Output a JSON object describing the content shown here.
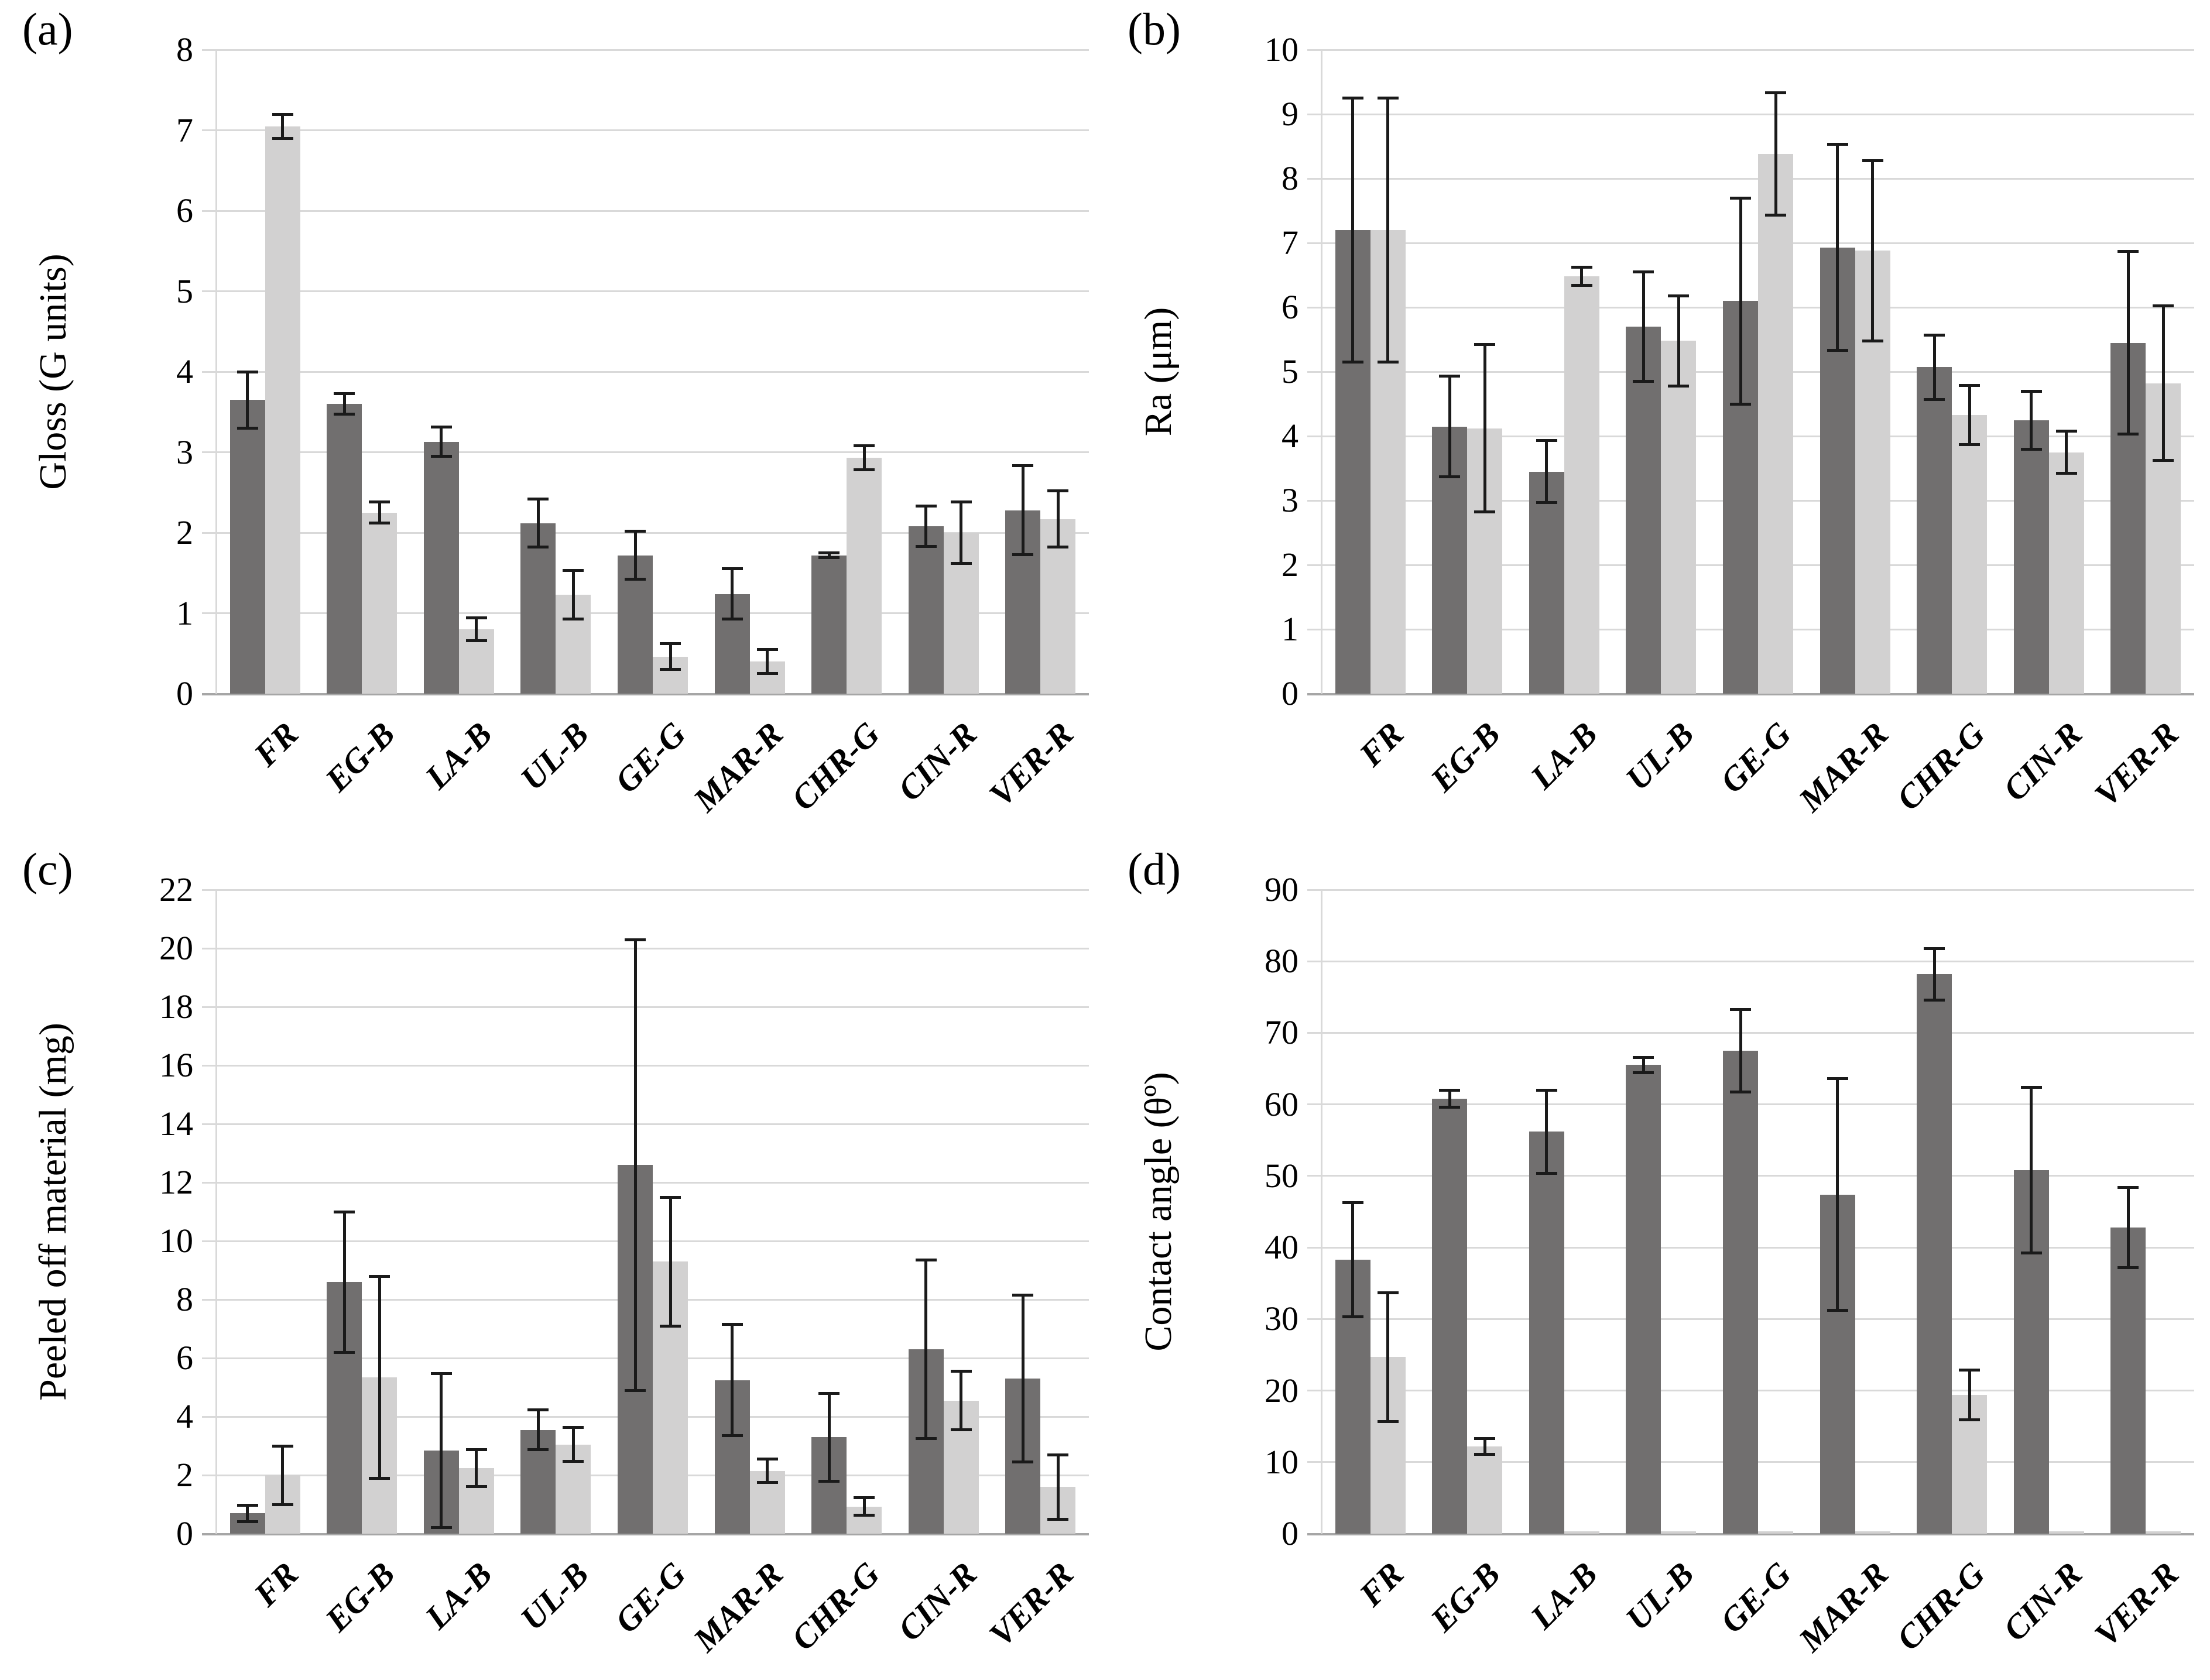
{
  "figure": {
    "background_color": "#ffffff",
    "gridline_color": "#d9d9d9",
    "axis_line_color": "#a6a6a6",
    "error_bar_color": "#1a1a1a",
    "series_colors": {
      "dark": "#716f6f",
      "light": "#d2d1d1"
    }
  },
  "chart_data": [
    {
      "id": "a",
      "panel_label": "(a)",
      "type": "bar",
      "title": "",
      "xlabel": "",
      "ylabel": "Gloss (G units)",
      "ylim": [
        0,
        8
      ],
      "ytick_step": 1,
      "grid": true,
      "legend_position": "none",
      "categories": [
        "FR",
        "EG-B",
        "LA-B",
        "UL-B",
        "GE-G",
        "MAR-R",
        "CHR-G",
        "CIN-R",
        "VER-R"
      ],
      "series": [
        {
          "name": "dark",
          "color": "#716f6f",
          "values": [
            3.65,
            3.6,
            3.13,
            2.12,
            1.72,
            1.24,
            1.72,
            2.08,
            2.28
          ],
          "errors": [
            0.35,
            0.13,
            0.18,
            0.3,
            0.3,
            0.31,
            0.03,
            0.25,
            0.55
          ]
        },
        {
          "name": "light",
          "color": "#d2d1d1",
          "values": [
            7.05,
            2.25,
            0.8,
            1.23,
            0.46,
            0.4,
            2.93,
            2.0,
            2.17
          ],
          "errors": [
            0.15,
            0.13,
            0.14,
            0.3,
            0.16,
            0.15,
            0.15,
            0.38,
            0.35
          ]
        }
      ]
    },
    {
      "id": "b",
      "panel_label": "(b)",
      "type": "bar",
      "title": "",
      "xlabel": "",
      "ylabel": "Ra (μm)",
      "ylim": [
        0,
        10
      ],
      "ytick_step": 1,
      "grid": true,
      "legend_position": "none",
      "categories": [
        "FR",
        "EG-B",
        "LA-B",
        "UL-B",
        "GE-G",
        "MAR-R",
        "CHR-G",
        "CIN-R",
        "VER-R"
      ],
      "series": [
        {
          "name": "dark",
          "color": "#716f6f",
          "values": [
            7.2,
            4.15,
            3.45,
            5.7,
            6.1,
            6.93,
            5.07,
            4.25,
            5.45
          ],
          "errors": [
            2.05,
            0.78,
            0.48,
            0.85,
            1.6,
            1.6,
            0.5,
            0.45,
            1.42
          ]
        },
        {
          "name": "light",
          "color": "#d2d1d1",
          "values": [
            7.2,
            4.12,
            6.48,
            5.48,
            8.38,
            6.88,
            4.33,
            3.75,
            4.82
          ],
          "errors": [
            2.05,
            1.3,
            0.14,
            0.7,
            0.95,
            1.4,
            0.46,
            0.33,
            1.2
          ]
        }
      ]
    },
    {
      "id": "c",
      "panel_label": "(c)",
      "type": "bar",
      "title": "",
      "xlabel": "",
      "ylabel": "Peeled off material (mg)",
      "ylim": [
        0,
        22
      ],
      "ytick_step": 2,
      "grid": true,
      "legend_position": "none",
      "categories": [
        "FR",
        "EG-B",
        "LA-B",
        "UL-B",
        "GE-G",
        "MAR-R",
        "CHR-G",
        "CIN-R",
        "VER-R"
      ],
      "series": [
        {
          "name": "dark",
          "color": "#716f6f",
          "values": [
            0.7,
            8.6,
            2.85,
            3.55,
            12.6,
            5.25,
            3.3,
            6.3,
            5.3
          ],
          "errors": [
            0.28,
            2.4,
            2.63,
            0.68,
            7.7,
            1.9,
            1.5,
            3.05,
            2.85
          ]
        },
        {
          "name": "light",
          "color": "#d2d1d1",
          "values": [
            2.0,
            5.35,
            2.25,
            3.05,
            9.3,
            2.15,
            0.93,
            4.55,
            1.6
          ],
          "errors": [
            1.0,
            3.45,
            0.63,
            0.58,
            2.2,
            0.4,
            0.3,
            1.0,
            1.1
          ]
        }
      ]
    },
    {
      "id": "d",
      "panel_label": "(d)",
      "type": "bar",
      "title": "",
      "xlabel": "",
      "ylabel": "Contact angle (θº)",
      "ylim": [
        0,
        90
      ],
      "ytick_step": 10,
      "grid": true,
      "legend_position": "none",
      "categories": [
        "FR",
        "EG-B",
        "LA-B",
        "UL-B",
        "GE-G",
        "MAR-R",
        "CHR-G",
        "CIN-R",
        "VER-R"
      ],
      "series": [
        {
          "name": "dark",
          "color": "#716f6f",
          "values": [
            38.3,
            60.8,
            56.2,
            65.5,
            67.5,
            47.4,
            78.2,
            50.8,
            42.8
          ],
          "errors": [
            8.0,
            1.2,
            5.8,
            1.1,
            5.8,
            16.2,
            3.6,
            11.6,
            5.6
          ]
        },
        {
          "name": "light",
          "color": "#d2d1d1",
          "values": [
            24.7,
            12.2,
            0.3,
            0.3,
            0.3,
            0.3,
            19.4,
            0.3,
            0.3
          ],
          "errors": [
            9.0,
            1.1,
            0,
            0,
            0,
            0,
            3.5,
            0,
            0
          ]
        }
      ]
    }
  ]
}
